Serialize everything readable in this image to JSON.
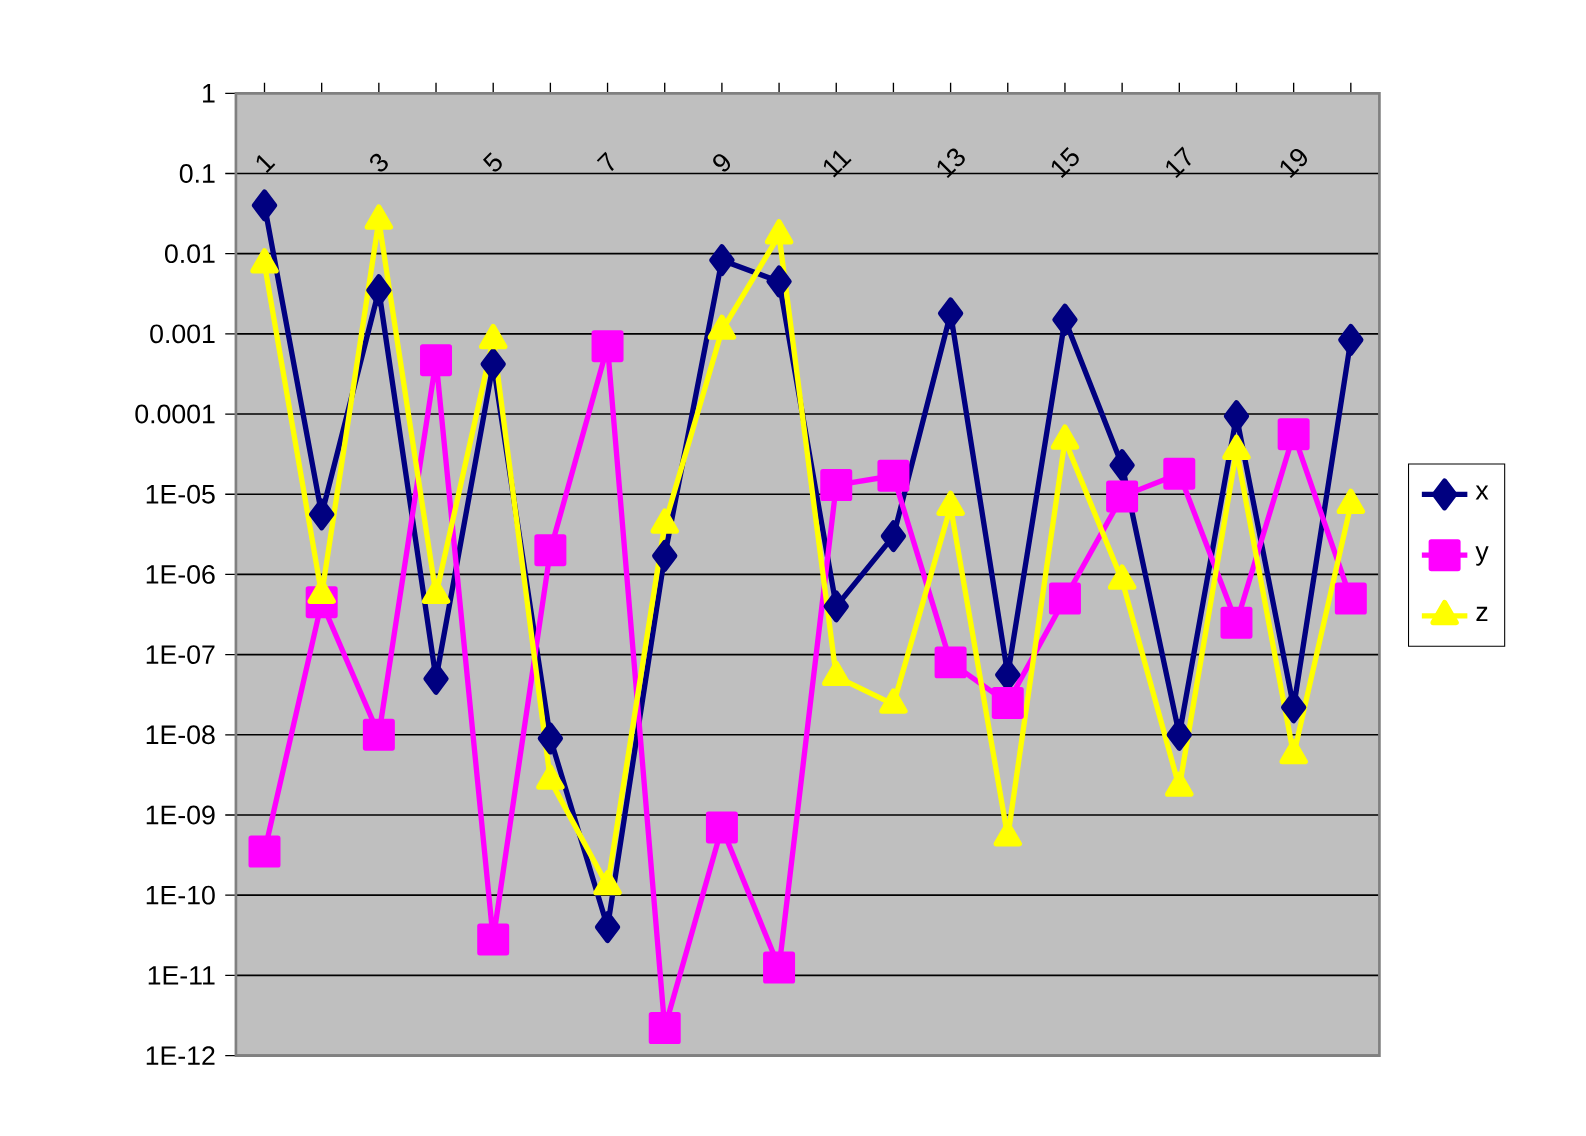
{
  "chart_data": {
    "type": "line",
    "categories": [
      "1",
      null,
      "3",
      null,
      "5",
      null,
      "7",
      null,
      "9",
      null,
      "11",
      null,
      "13",
      null,
      "15",
      null,
      "17",
      null,
      "19",
      null
    ],
    "series": [
      {
        "name": "x",
        "color": "#000080",
        "marker": "diamond",
        "values": [
          0.04,
          5.6e-06,
          0.0035,
          5e-08,
          0.00042,
          9e-09,
          4e-11,
          1.7e-06,
          0.0083,
          0.0045,
          4e-07,
          3e-06,
          0.0018,
          5.6e-08,
          0.0015,
          2.3e-05,
          1e-08,
          9.4e-05,
          2.2e-08,
          0.00084
        ]
      },
      {
        "name": "y",
        "color": "#ff00ff",
        "marker": "square",
        "values": [
          3.5e-10,
          4.5e-07,
          1e-08,
          0.00047,
          2.8e-11,
          2e-06,
          0.0007,
          2.2e-12,
          7e-10,
          1.25e-11,
          1.3e-05,
          1.7e-05,
          8e-08,
          2.5e-08,
          5e-07,
          9.4e-06,
          1.8e-05,
          2.5e-07,
          5.6e-05,
          5e-07
        ]
      },
      {
        "name": "z",
        "color": "#ffff00",
        "marker": "triangle",
        "values": [
          0.0074,
          5.6e-07,
          0.026,
          5.6e-07,
          0.00084,
          2.7e-09,
          1.3e-10,
          4.2e-06,
          0.0011,
          0.017,
          5.3e-08,
          2.4e-08,
          7e-06,
          5.3e-10,
          4.7e-05,
          8.4e-07,
          2.2e-09,
          3.5e-05,
          5.6e-09,
          7.4e-06
        ]
      }
    ],
    "log": "y",
    "ylim": [
      1e-12,
      1
    ],
    "yticks": [
      1,
      0.1,
      0.01,
      0.001,
      0.0001,
      {
        "value": 1e-05,
        "label": "1E-05"
      },
      {
        "value": 1e-06,
        "label": "1E-06"
      },
      {
        "value": 1e-07,
        "label": "1E-07"
      },
      {
        "value": 1e-08,
        "label": "1E-08"
      },
      {
        "value": 1e-09,
        "label": "1E-09"
      },
      {
        "value": 1e-10,
        "label": "1E-10"
      },
      {
        "value": 1e-11,
        "label": "1E-11"
      },
      {
        "value": 1e-12,
        "label": "1E-12"
      }
    ],
    "grid": "y",
    "legend": "right",
    "line_style": "solid"
  }
}
